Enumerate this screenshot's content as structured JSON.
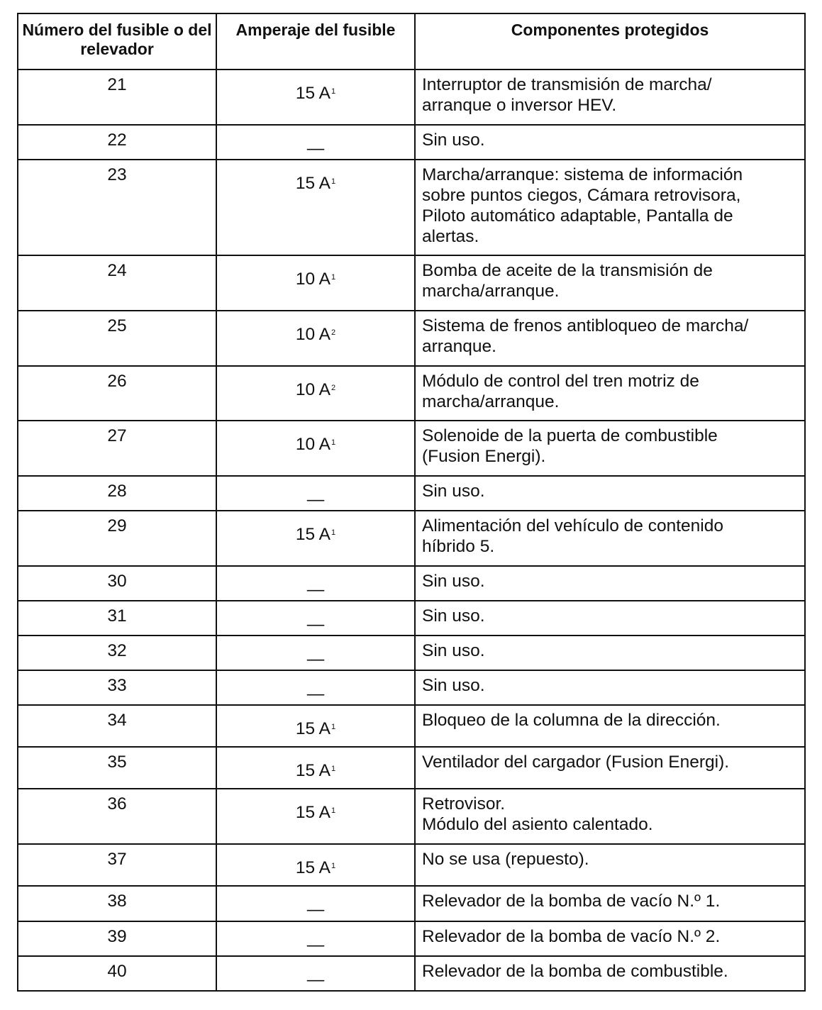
{
  "headers": [
    "Número del fusible o del relevador",
    "Amperaje del fusible",
    "Componentes protegidos"
  ],
  "rows": [
    {
      "num": "21",
      "amp": "15 A",
      "sup": "1",
      "comp": "Interruptor de transmisión de marcha/\narranque o inversor HEV."
    },
    {
      "num": "22",
      "amp": "—",
      "sup": "",
      "comp": "Sin uso."
    },
    {
      "num": "23",
      "amp": "15 A",
      "sup": "1",
      "comp": "Marcha/arranque: sistema de información\nsobre puntos ciegos, Cámara retrovisora,\nPiloto automático adaptable, Pantalla de\nalertas."
    },
    {
      "num": "24",
      "amp": "10 A",
      "sup": "1",
      "comp": "Bomba de aceite de la transmisión de\nmarcha/arranque."
    },
    {
      "num": "25",
      "amp": "10 A",
      "sup": "2",
      "comp": "Sistema de frenos antibloqueo de marcha/\narranque."
    },
    {
      "num": "26",
      "amp": "10 A",
      "sup": "2",
      "comp": "Módulo de control del tren motriz de\nmarcha/arranque."
    },
    {
      "num": "27",
      "amp": "10 A",
      "sup": "1",
      "comp": "Solenoide de la puerta de combustible\n(Fusion Energi)."
    },
    {
      "num": "28",
      "amp": "—",
      "sup": "",
      "comp": "Sin uso."
    },
    {
      "num": "29",
      "amp": "15 A",
      "sup": "1",
      "comp": "Alimentación del vehículo de contenido\nhíbrido 5."
    },
    {
      "num": "30",
      "amp": "—",
      "sup": "",
      "comp": "Sin uso."
    },
    {
      "num": "31",
      "amp": "—",
      "sup": "",
      "comp": "Sin uso."
    },
    {
      "num": "32",
      "amp": "—",
      "sup": "",
      "comp": "Sin uso."
    },
    {
      "num": "33",
      "amp": "—",
      "sup": "",
      "comp": "Sin uso."
    },
    {
      "num": "34",
      "amp": "15 A",
      "sup": "1",
      "comp": "Bloqueo de la columna de la dirección."
    },
    {
      "num": "35",
      "amp": "15 A",
      "sup": "1",
      "comp": "Ventilador del cargador (Fusion Energi)."
    },
    {
      "num": "36",
      "amp": "15 A",
      "sup": "1",
      "comp": "Retrovisor.\nMódulo del asiento calentado."
    },
    {
      "num": "37",
      "amp": "15 A",
      "sup": "1",
      "comp": "No se usa (repuesto)."
    },
    {
      "num": "38",
      "amp": "—",
      "sup": "",
      "comp": "Relevador de la bomba de vacío N.º 1."
    },
    {
      "num": "39",
      "amp": "—",
      "sup": "",
      "comp": "Relevador de la bomba de vacío N.º 2."
    },
    {
      "num": "40",
      "amp": "—",
      "sup": "",
      "comp": "Relevador de la bomba de combustible."
    }
  ]
}
